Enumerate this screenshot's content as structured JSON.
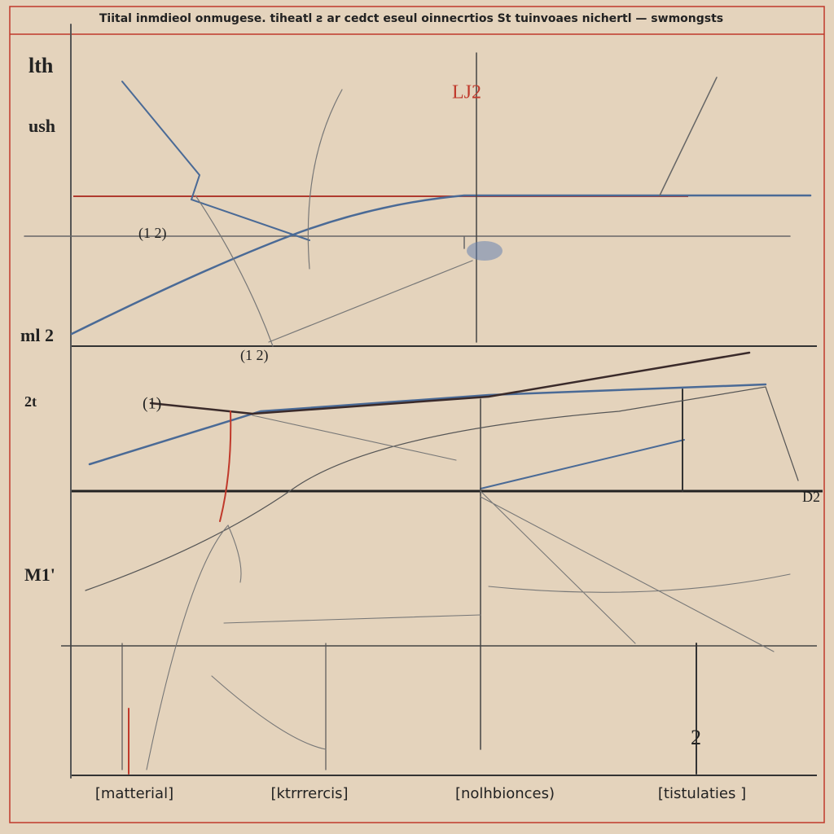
{
  "header": {
    "title": "Tiital inmdieol onmugese. tiheatl ƨ ar cedct eseul oinnecrtios St tuinvoaes nichertl — swmongsts"
  },
  "left_labels": [
    "lth",
    "ush",
    "ml 2",
    "2t",
    "M1'"
  ],
  "annotations": [
    "LJ2",
    "(1 2)",
    "(1 2)",
    "(1)",
    "D2",
    "2"
  ],
  "bottom_labels": [
    "[matterial]",
    "[ktrrrercis]",
    "[nolhbionces)",
    "[tistulaties ]"
  ]
}
